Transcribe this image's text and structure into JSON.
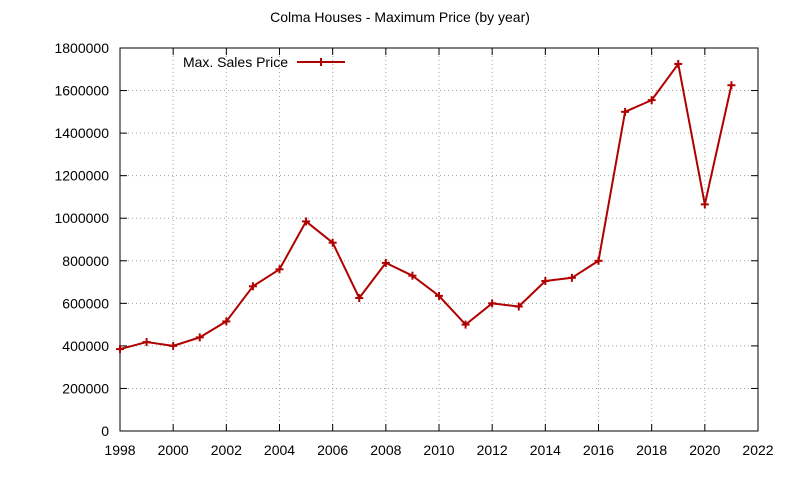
{
  "chart_data": {
    "type": "line",
    "title": "Colma Houses - Maximum Price (by year)",
    "xlabel": "",
    "ylabel": "",
    "xlim": [
      1998,
      2022
    ],
    "ylim": [
      0,
      1800000
    ],
    "x_ticks": [
      1998,
      2000,
      2002,
      2004,
      2006,
      2008,
      2010,
      2012,
      2014,
      2016,
      2018,
      2020,
      2022
    ],
    "y_ticks": [
      0,
      200000,
      400000,
      600000,
      800000,
      1000000,
      1200000,
      1400000,
      1600000,
      1800000
    ],
    "grid": true,
    "legend_position": "top-left",
    "series": [
      {
        "name": "Max. Sales Price",
        "color": "#b00000",
        "marker": "plus",
        "x": [
          1998,
          1999,
          2000,
          2001,
          2002,
          2003,
          2004,
          2005,
          2006,
          2007,
          2008,
          2009,
          2010,
          2011,
          2012,
          2013,
          2014,
          2015,
          2016,
          2017,
          2018,
          2019,
          2020,
          2021
        ],
        "y": [
          385000,
          418000,
          400000,
          440000,
          515000,
          680000,
          760000,
          985000,
          885000,
          625000,
          790000,
          730000,
          635000,
          500000,
          600000,
          585000,
          705000,
          720000,
          800000,
          1500000,
          1555000,
          1725000,
          1065000,
          1625000
        ]
      }
    ]
  }
}
